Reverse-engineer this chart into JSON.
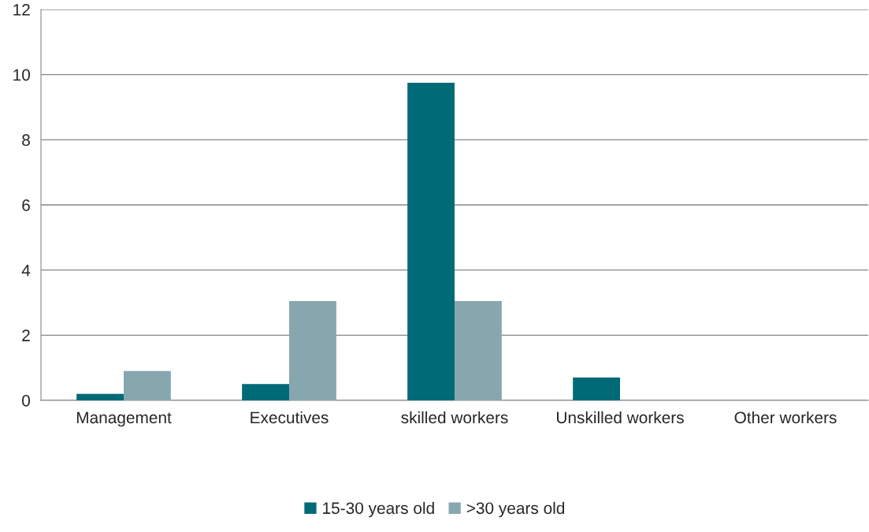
{
  "chart_data": {
    "type": "bar",
    "categories": [
      "Management",
      "Executives",
      "skilled workers",
      "Unskilled workers",
      "Other workers"
    ],
    "series": [
      {
        "name": "15-30 years old",
        "color": "#006b77",
        "values": [
          0.2,
          0.5,
          9.75,
          0.7,
          0
        ]
      },
      {
        "name": ">30 years old",
        "color": "#87a7ae",
        "values": [
          0.9,
          3.05,
          3.05,
          0,
          0
        ]
      }
    ],
    "ylim": [
      0,
      12
    ],
    "yticks": [
      0,
      2,
      4,
      6,
      8,
      10,
      12
    ],
    "grid": "y",
    "legend": "bottom"
  }
}
